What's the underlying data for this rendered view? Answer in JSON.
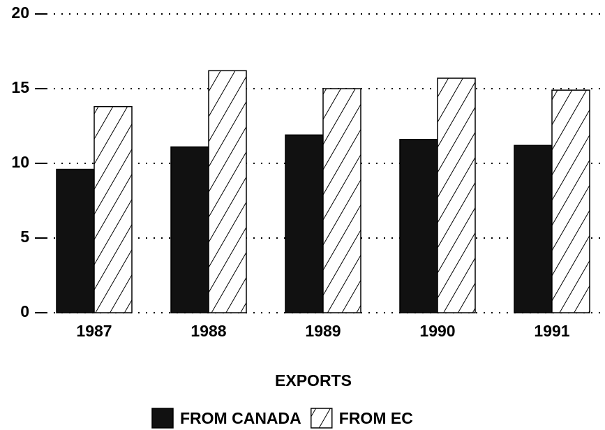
{
  "chart_data": {
    "type": "bar",
    "categories": [
      "1987",
      "1988",
      "1989",
      "1990",
      "1991"
    ],
    "series": [
      {
        "name": "FROM CANADA",
        "color": "#111111",
        "values": [
          9.6,
          11.1,
          11.9,
          11.6,
          11.2
        ]
      },
      {
        "name": "FROM EC",
        "color": "#ffffff",
        "hatch": true,
        "values": [
          13.8,
          16.2,
          15.0,
          15.7,
          14.9
        ]
      }
    ],
    "ylim": [
      0,
      20
    ],
    "yticks": [
      0,
      5,
      10,
      15,
      20
    ],
    "grid": true,
    "x_label": "EXPORTS",
    "legend": "bottom"
  }
}
